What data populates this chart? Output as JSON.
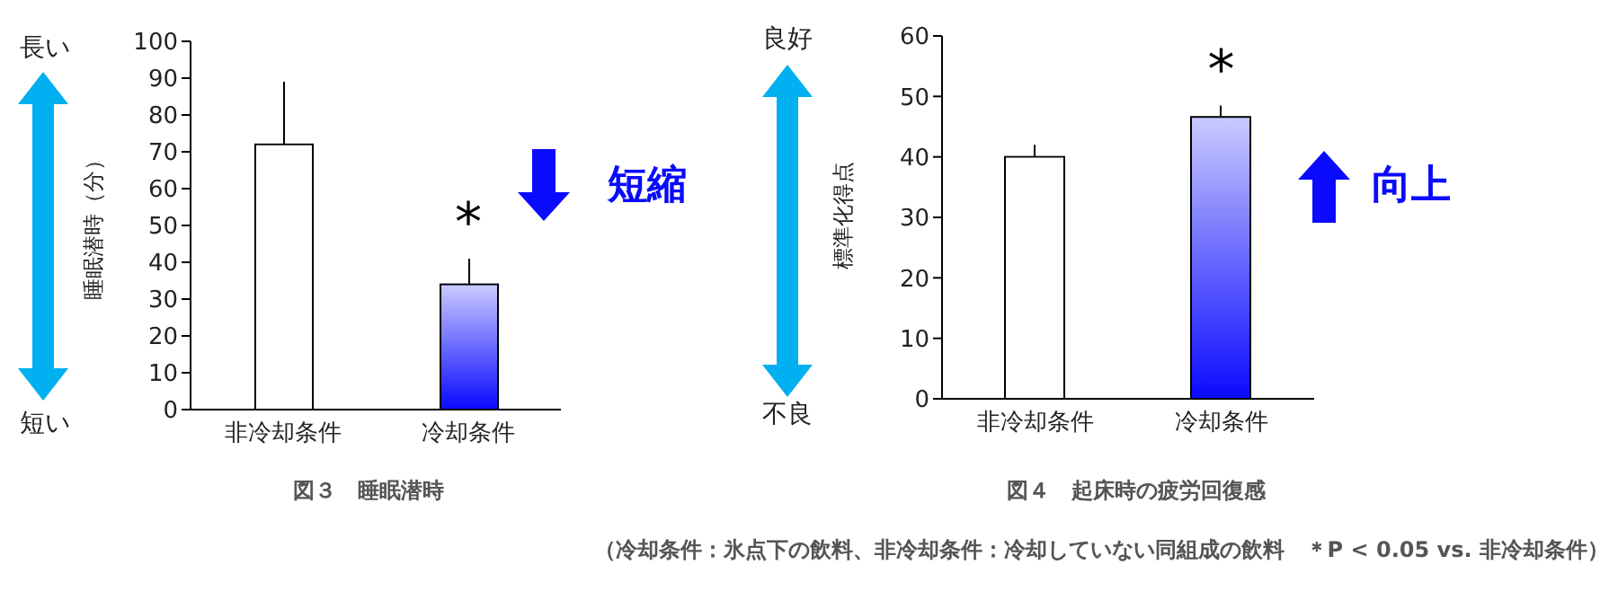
{
  "chart_data": [
    {
      "type": "bar",
      "title": "図３　睡眠潜時",
      "ylabel": "睡眠潜時（分）",
      "categories": [
        "非冷却条件",
        "冷却条件"
      ],
      "values": [
        72,
        34
      ],
      "colors": [
        "#ffffff",
        "#0a0aff"
      ],
      "errors": [
        [
          72,
          89
        ],
        [
          34,
          41
        ]
      ],
      "ylim": [
        0,
        100
      ],
      "yticks": [
        0,
        10,
        20,
        30,
        40,
        50,
        60,
        70,
        80,
        90,
        100
      ],
      "grid": false,
      "legend": false,
      "annotations": [
        {
          "text": "*",
          "x": "冷却条件",
          "y": 41
        },
        "長い",
        "短い",
        "短縮"
      ]
    },
    {
      "type": "bar",
      "title": "図４　起床時の疲労回復感",
      "ylabel": "標準化得点",
      "categories": [
        "非冷却条件",
        "冷却条件"
      ],
      "values": [
        40,
        46.6
      ],
      "colors": [
        "#ffffff",
        "#0a0aff"
      ],
      "errors": [
        [
          40,
          42
        ],
        [
          46.6,
          48.5
        ]
      ],
      "ylim": [
        0,
        60
      ],
      "yticks": [
        0,
        10,
        20,
        30,
        40,
        50,
        60
      ],
      "grid": false,
      "legend": false,
      "annotations": [
        {
          "text": "*",
          "x": "冷却条件",
          "y": 48.5
        },
        "良好",
        "不良",
        "向上",
        "（冷却条件：氷点下の飲料、非冷却条件：冷却していない同組成の飲料　＊P < 0.05 vs. 非冷却条件）"
      ]
    }
  ]
}
